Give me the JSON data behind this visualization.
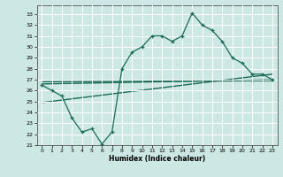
{
  "xlabel": "Humidex (Indice chaleur)",
  "bg_color": "#cde8e4",
  "line_color": "#1a6b5a",
  "grid_color": "#ffffff",
  "xlim": [
    -0.5,
    23.5
  ],
  "ylim": [
    21,
    33.8
  ],
  "yticks": [
    21,
    22,
    23,
    24,
    25,
    26,
    27,
    28,
    29,
    30,
    31,
    32,
    33
  ],
  "xticks": [
    0,
    1,
    2,
    3,
    4,
    5,
    6,
    7,
    8,
    9,
    10,
    11,
    12,
    13,
    14,
    15,
    16,
    17,
    18,
    19,
    20,
    21,
    22,
    23
  ],
  "main_x": [
    0,
    1,
    2,
    3,
    4,
    5,
    6,
    7,
    8,
    9,
    10,
    11,
    12,
    13,
    14,
    15,
    16,
    17,
    18,
    19,
    20,
    21,
    22,
    23
  ],
  "main_y": [
    26.5,
    26.0,
    25.5,
    23.5,
    22.2,
    22.5,
    21.1,
    22.2,
    28.0,
    29.5,
    30.0,
    31.0,
    31.0,
    30.5,
    31.0,
    33.1,
    32.0,
    31.5,
    30.5,
    29.0,
    28.5,
    27.5,
    27.5,
    27.0
  ],
  "line1_x": [
    0,
    23
  ],
  "line1_y": [
    26.6,
    27.0
  ],
  "line2_x": [
    0,
    23
  ],
  "line2_y": [
    24.9,
    27.5
  ],
  "line3_x": [
    0,
    23
  ],
  "line3_y": [
    26.8,
    26.9
  ]
}
